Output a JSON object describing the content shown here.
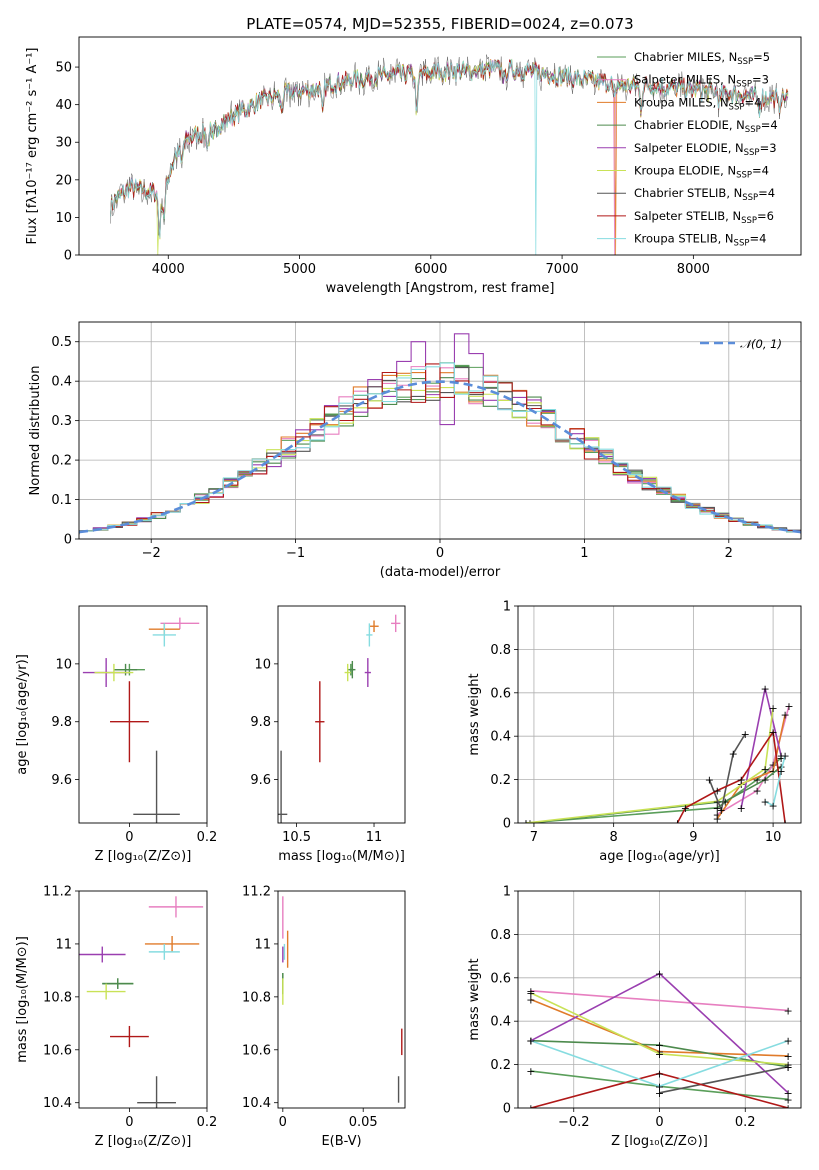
{
  "title": "PLATE=0574, MJD=52355, FIBERID=0024, z=0.073",
  "colors": [
    "#5a9e5a",
    "#e77fc0",
    "#e07b2a",
    "#4d8a4d",
    "#9a3fb0",
    "#c9e257",
    "#555555",
    "#b01818",
    "#86dce0"
  ],
  "chart_data": [
    {
      "id": "spectrum",
      "type": "line",
      "xlabel": "wavelength [Angstrom, rest frame]",
      "ylabel": "Flux [fλ10⁻¹⁷ erg cm⁻² s⁻¹ A⁻¹]",
      "xlim": [
        3320,
        8820
      ],
      "ylim": [
        0,
        58
      ],
      "xticks": [
        4000,
        5000,
        6000,
        7000,
        8000
      ],
      "yticks": [
        0,
        10,
        20,
        30,
        40,
        50
      ],
      "legend_position": "top-right",
      "continuum": {
        "x": [
          3550,
          3700,
          3850,
          3950,
          4050,
          4150,
          4300,
          4500,
          4700,
          4900,
          5100,
          5300,
          5500,
          5700,
          5900,
          6100,
          6300,
          6500,
          6700,
          6900,
          7100,
          7300,
          7500,
          7700,
          7900,
          8100,
          8300,
          8500,
          8700
        ],
        "y": [
          13,
          18,
          17,
          16,
          26,
          31,
          33,
          37,
          41,
          43,
          44,
          46,
          47,
          48,
          48,
          49,
          49,
          49.5,
          49,
          48,
          47,
          46,
          45,
          45,
          44.5,
          43.5,
          43,
          42,
          42
        ]
      },
      "series": [
        {
          "name": "Chabrier MILES, N_SSP=5"
        },
        {
          "name": "Salpeter MILES, N_SSP=3"
        },
        {
          "name": "Kroupa MILES, N_SSP=4"
        },
        {
          "name": "Chabrier ELODIE, N_SSP=4"
        },
        {
          "name": "Salpeter ELODIE, N_SSP=3"
        },
        {
          "name": "Kroupa ELODIE, N_SSP=4"
        },
        {
          "name": "Chabrier STELIB, N_SSP=4"
        },
        {
          "name": "Salpeter STELIB, N_SSP=6"
        },
        {
          "name": "Kroupa STELIB, N_SSP=4"
        }
      ],
      "legend_labels": [
        {
          "pre": "Chabrier MILES, N",
          "sub": "SSP",
          "post": "=5"
        },
        {
          "pre": "Salpeter MILES, N",
          "sub": "SSP",
          "post": "=3"
        },
        {
          "pre": "Kroupa MILES, N",
          "sub": "SSP",
          "post": "=4"
        },
        {
          "pre": "Chabrier ELODIE, N",
          "sub": "SSP",
          "post": "=4"
        },
        {
          "pre": "Salpeter ELODIE, N",
          "sub": "SSP",
          "post": "=3"
        },
        {
          "pre": "Kroupa ELODIE, N",
          "sub": "SSP",
          "post": "=4"
        },
        {
          "pre": "Chabrier STELIB, N",
          "sub": "SSP",
          "post": "=4"
        },
        {
          "pre": "Salpeter STELIB, N",
          "sub": "SSP",
          "post": "=6"
        },
        {
          "pre": "Kroupa STELIB, N",
          "sub": "SSP",
          "post": "=4"
        }
      ]
    },
    {
      "id": "residuals",
      "type": "histogram",
      "xlabel": "(data-model)/error",
      "ylabel": "Normed distribution",
      "xlim": [
        -2.5,
        2.5
      ],
      "ylim": [
        0,
        0.55
      ],
      "xticks": [
        -2,
        -1,
        0,
        1,
        2
      ],
      "yticks": [
        0.0,
        0.1,
        0.2,
        0.3,
        0.4,
        0.5
      ],
      "grid": true,
      "legend_label": "𝒩(0, 1)",
      "legend_position": "top-right",
      "bin_width": 0.1,
      "peak_bins": {
        "x": [
          -0.3,
          -0.2,
          0.0,
          0.1,
          0.2
        ],
        "values": [
          0.45,
          0.5,
          0.29,
          0.52,
          0.47
        ]
      }
    },
    {
      "id": "age-vs-Z",
      "type": "scatter",
      "xlabel": "Z [log₁₀(Z/Z⊙)]",
      "ylabel": "age  [log₁₀(age/yr)]",
      "xlim": [
        -0.13,
        0.2
      ],
      "ylim": [
        9.45,
        10.2
      ],
      "xticks": [
        0.0,
        0.2
      ],
      "yticks": [
        9.6,
        9.8,
        10.0
      ],
      "points": [
        {
          "x": 0.0,
          "y": 9.98,
          "xerr": 0.04,
          "yerr": 0.02
        },
        {
          "x": 0.13,
          "y": 10.14,
          "xerr": 0.05,
          "yerr": 0.02
        },
        {
          "x": 0.09,
          "y": 10.12,
          "xerr": 0.04,
          "yerr": 0.02
        },
        {
          "x": -0.01,
          "y": 9.98,
          "xerr": 0.03,
          "yerr": 0.02
        },
        {
          "x": -0.06,
          "y": 9.97,
          "xerr": 0.06,
          "yerr": 0.05
        },
        {
          "x": -0.04,
          "y": 9.97,
          "xerr": 0.05,
          "yerr": 0.03
        },
        {
          "x": 0.07,
          "y": 9.48,
          "xerr": 0.06,
          "yerr": 0.22
        },
        {
          "x": 0.0,
          "y": 9.8,
          "xerr": 0.05,
          "yerr": 0.14
        },
        {
          "x": 0.09,
          "y": 10.1,
          "xerr": 0.03,
          "yerr": 0.04
        }
      ]
    },
    {
      "id": "age-vs-mass",
      "type": "scatter",
      "xlabel": "mass [log₁₀(M/M⊙)]",
      "xlim": [
        10.38,
        11.2
      ],
      "ylim": [
        9.45,
        10.2
      ],
      "xticks": [
        10.5,
        11.0
      ],
      "yticks": [
        9.6,
        9.8,
        10.0
      ],
      "points": [
        {
          "x": 10.85,
          "y": 9.98,
          "xerr": 0.02,
          "yerr": 0.02
        },
        {
          "x": 11.14,
          "y": 10.14,
          "xerr": 0.03,
          "yerr": 0.03
        },
        {
          "x": 11.0,
          "y": 10.13,
          "xerr": 0.03,
          "yerr": 0.02
        },
        {
          "x": 10.86,
          "y": 9.98,
          "xerr": 0.02,
          "yerr": 0.03
        },
        {
          "x": 10.96,
          "y": 9.97,
          "xerr": 0.02,
          "yerr": 0.05
        },
        {
          "x": 10.83,
          "y": 9.97,
          "xerr": 0.02,
          "yerr": 0.03
        },
        {
          "x": 10.4,
          "y": 9.48,
          "xerr": 0.04,
          "yerr": 0.22
        },
        {
          "x": 10.65,
          "y": 9.8,
          "xerr": 0.03,
          "yerr": 0.14
        },
        {
          "x": 10.97,
          "y": 10.1,
          "xerr": 0.02,
          "yerr": 0.04
        }
      ]
    },
    {
      "id": "mass-weight-vs-age",
      "type": "line",
      "xlabel": "age  [log₁₀(age/yr)]",
      "ylabel": "mass weight",
      "xlim": [
        6.8,
        10.35
      ],
      "ylim": [
        0.0,
        1.0
      ],
      "xticks": [
        7,
        8,
        9,
        10
      ],
      "yticks": [
        0.0,
        0.2,
        0.4,
        0.6,
        0.8,
        1.0
      ],
      "grid": true,
      "series_points": [
        {
          "x": [
            6.9,
            9.3,
            9.8,
            10.1
          ],
          "y": [
            0.0,
            0.07,
            0.2,
            0.3
          ]
        },
        {
          "x": [
            9.3,
            9.8,
            10.0,
            10.2
          ],
          "y": [
            0.04,
            0.15,
            0.27,
            0.54
          ]
        },
        {
          "x": [
            9.3,
            9.6,
            10.0,
            10.15
          ],
          "y": [
            0.02,
            0.18,
            0.24,
            0.5
          ]
        },
        {
          "x": [
            6.95,
            9.4,
            9.9,
            10.1
          ],
          "y": [
            0.0,
            0.1,
            0.2,
            0.26
          ]
        },
        {
          "x": [
            9.6,
            9.9,
            10.1
          ],
          "y": [
            0.07,
            0.62,
            0.31
          ]
        },
        {
          "x": [
            6.9,
            9.3,
            9.9,
            10.0
          ],
          "y": [
            0.0,
            0.1,
            0.25,
            0.53
          ]
        },
        {
          "x": [
            9.2,
            9.35,
            9.5,
            9.65
          ],
          "y": [
            0.2,
            0.06,
            0.32,
            0.41
          ]
        },
        {
          "x": [
            8.8,
            8.9,
            9.3,
            9.6,
            10.0,
            10.15
          ],
          "y": [
            0.0,
            0.07,
            0.15,
            0.2,
            0.42,
            0.0
          ]
        },
        {
          "x": [
            9.9,
            10.0,
            10.1,
            10.15
          ],
          "y": [
            0.1,
            0.08,
            0.24,
            0.31
          ]
        }
      ]
    },
    {
      "id": "mass-vs-Z",
      "type": "scatter",
      "xlabel": "Z [log₁₀(Z/Z⊙)]",
      "ylabel": "mass [log₁₀(M/M⊙)]",
      "xlim": [
        -0.13,
        0.2
      ],
      "ylim": [
        10.38,
        11.2
      ],
      "xticks": [
        0.0,
        0.2
      ],
      "yticks": [
        10.4,
        10.6,
        10.8,
        11.0,
        11.2
      ],
      "points": [
        {
          "x": -0.03,
          "y": 10.85,
          "xerr": 0.04,
          "yerr": 0.02
        },
        {
          "x": 0.12,
          "y": 11.14,
          "xerr": 0.07,
          "yerr": 0.04
        },
        {
          "x": 0.11,
          "y": 11.0,
          "xerr": 0.07,
          "yerr": 0.03
        },
        {
          "x": -0.03,
          "y": 10.85,
          "xerr": 0.04,
          "yerr": 0.02
        },
        {
          "x": -0.07,
          "y": 10.96,
          "xerr": 0.06,
          "yerr": 0.03
        },
        {
          "x": -0.06,
          "y": 10.82,
          "xerr": 0.05,
          "yerr": 0.03
        },
        {
          "x": 0.07,
          "y": 10.4,
          "xerr": 0.05,
          "yerr": 0.1
        },
        {
          "x": 0.0,
          "y": 10.65,
          "xerr": 0.05,
          "yerr": 0.04
        },
        {
          "x": 0.09,
          "y": 10.97,
          "xerr": 0.04,
          "yerr": 0.03
        }
      ]
    },
    {
      "id": "mass-vs-EBV",
      "type": "scatter",
      "xlabel": "E(B-V)",
      "xlim": [
        -0.003,
        0.076
      ],
      "ylim": [
        10.38,
        11.2
      ],
      "xticks": [
        0.0,
        0.05
      ],
      "yticks": [
        10.4,
        10.6,
        10.8,
        11.0,
        11.2
      ],
      "points": [
        {
          "x": 0.0,
          "y": 10.85,
          "yerr": 0.04
        },
        {
          "x": 0.0,
          "y": 11.1,
          "yerr": 0.08
        },
        {
          "x": 0.003,
          "y": 10.98,
          "yerr": 0.07
        },
        {
          "x": 0.0,
          "y": 10.85,
          "yerr": 0.04
        },
        {
          "x": 0.0,
          "y": 10.96,
          "yerr": 0.03
        },
        {
          "x": 0.0,
          "y": 10.82,
          "yerr": 0.05
        },
        {
          "x": 0.072,
          "y": 10.45,
          "yerr": 0.05
        },
        {
          "x": 0.074,
          "y": 10.63,
          "yerr": 0.05
        },
        {
          "x": 0.001,
          "y": 10.97,
          "yerr": 0.03
        }
      ]
    },
    {
      "id": "mass-weight-vs-Z",
      "type": "line",
      "xlabel": "Z [log₁₀(Z/Z⊙)]",
      "ylabel": "mass weight",
      "xlim": [
        -0.33,
        0.33
      ],
      "ylim": [
        0.0,
        1.0
      ],
      "xticks": [
        -0.2,
        0.0,
        0.2
      ],
      "yticks": [
        0.0,
        0.2,
        0.4,
        0.6,
        0.8,
        1.0
      ],
      "grid": true,
      "series_points": [
        {
          "x": [
            -0.3,
            0.0,
            0.3
          ],
          "y": [
            0.17,
            0.1,
            0.04
          ]
        },
        {
          "x": [
            -0.3,
            0.3
          ],
          "y": [
            0.54,
            0.45
          ]
        },
        {
          "x": [
            -0.3,
            0.0,
            0.3
          ],
          "y": [
            0.5,
            0.26,
            0.24
          ]
        },
        {
          "x": [
            -0.3,
            0.0,
            0.3
          ],
          "y": [
            0.31,
            0.29,
            0.19
          ]
        },
        {
          "x": [
            -0.3,
            0.0,
            0.3
          ],
          "y": [
            0.31,
            0.62,
            0.07
          ]
        },
        {
          "x": [
            -0.3,
            0.0,
            0.3
          ],
          "y": [
            0.53,
            0.25,
            0.2
          ]
        },
        {
          "x": [
            0.0,
            0.3
          ],
          "y": [
            0.07,
            0.19
          ]
        },
        {
          "x": [
            -0.3,
            0.0,
            0.3
          ],
          "y": [
            0.0,
            0.16,
            0.0
          ]
        },
        {
          "x": [
            -0.3,
            0.0,
            0.3
          ],
          "y": [
            0.31,
            0.1,
            0.31
          ]
        }
      ]
    }
  ]
}
